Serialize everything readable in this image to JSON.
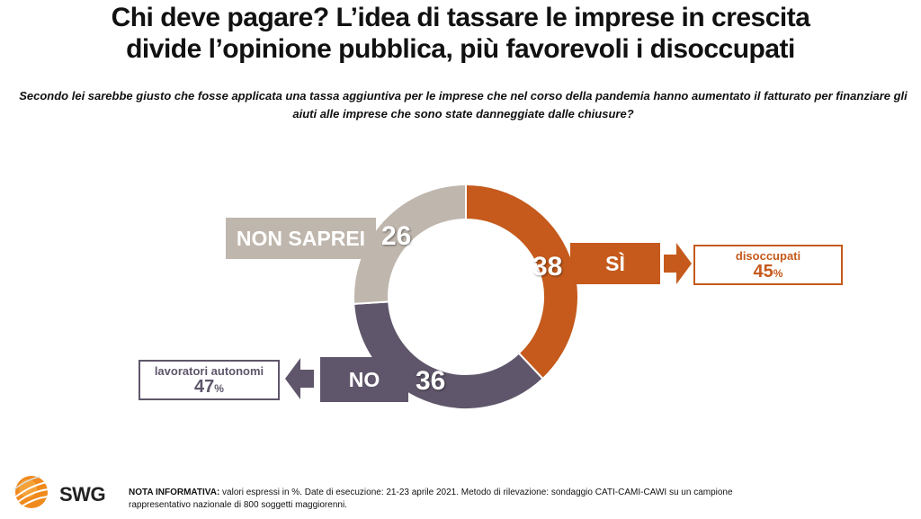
{
  "header": {
    "title_line1": "Chi deve pagare? L’idea di tassare le imprese in crescita",
    "title_line2": "divide l’opinione pubblica, più favorevoli i disoccupati",
    "question": "Secondo lei sarebbe giusto che fosse applicata una tassa aggiuntiva per le imprese che nel corso della pandemia hanno aumentato il fatturato per finanziare gli aiuti alle imprese che sono state danneggiate dalle chiusure?"
  },
  "chart_data": {
    "type": "pie",
    "donut": true,
    "title": "Chi deve pagare?",
    "unit": "%",
    "start": "top",
    "direction": "clockwise",
    "categories": [
      "SÌ",
      "NO",
      "NON SAPREI"
    ],
    "values": [
      38,
      36,
      26
    ],
    "colors": [
      "#c55a1c",
      "#5f566b",
      "#bfb6ad"
    ],
    "value_labels": [
      "38",
      "36",
      "26"
    ],
    "callouts": [
      {
        "category": "SÌ",
        "group": "disoccupati",
        "value": 45,
        "value_label": "45",
        "pct_sign": "%",
        "color": "#c55a1c"
      },
      {
        "category": "NO",
        "group": "lavoratori autonomi",
        "value": 47,
        "value_label": "47",
        "pct_sign": "%",
        "color": "#5f566b"
      }
    ]
  },
  "footer": {
    "logo_text": "SWG",
    "note_label": "NOTA INFORMATIVA:",
    "note_text": " valori espressi in %. Date di esecuzione: 21-23 aprile 2021. Metodo di rilevazione: sondaggio CATI-CAMI-CAWI su un campione rappresentativo nazionale di 800 soggetti maggiorenni."
  }
}
